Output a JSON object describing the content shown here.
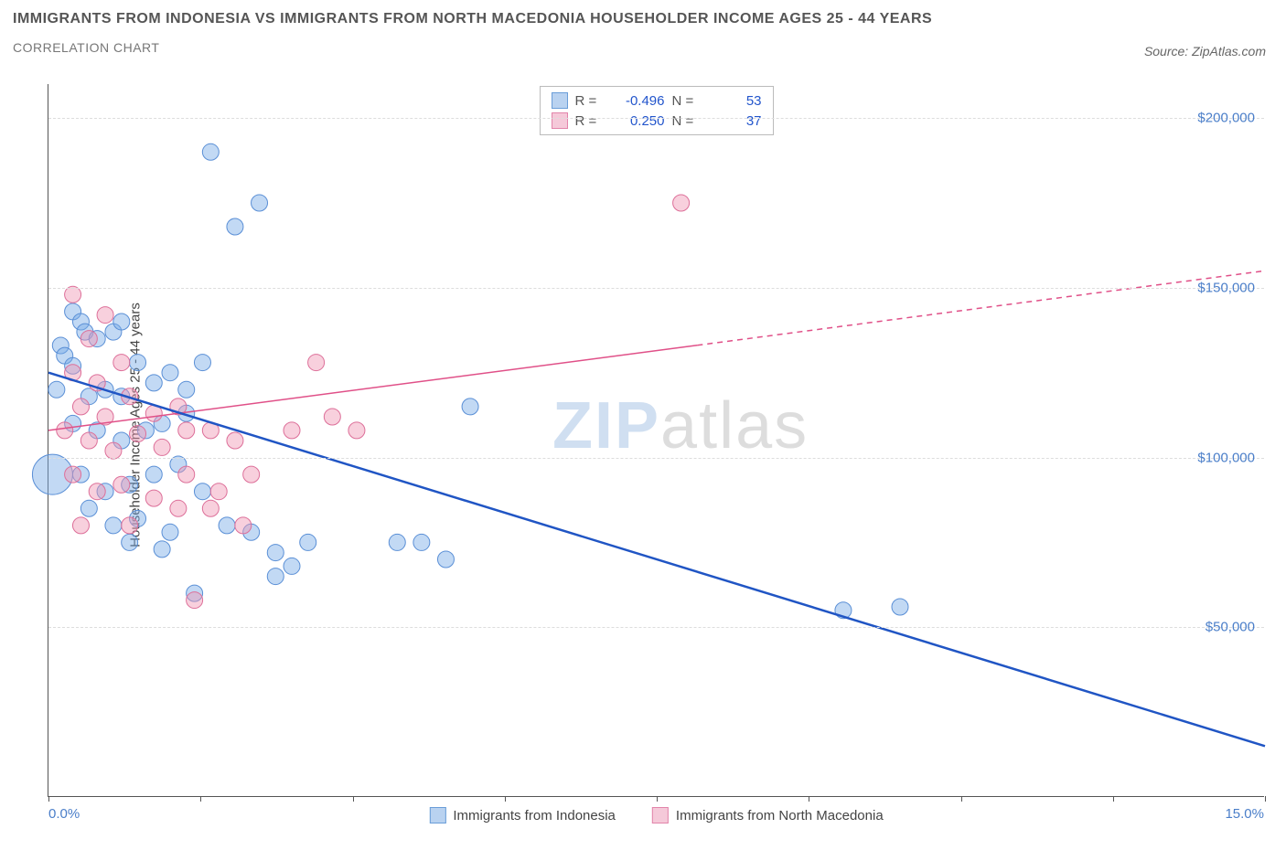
{
  "title": "IMMIGRANTS FROM INDONESIA VS IMMIGRANTS FROM NORTH MACEDONIA HOUSEHOLDER INCOME AGES 25 - 44 YEARS",
  "subtitle": "CORRELATION CHART",
  "source": "Source: ZipAtlas.com",
  "watermark_zip": "ZIP",
  "watermark_atlas": "atlas",
  "chart": {
    "type": "scatter",
    "background_color": "#ffffff",
    "grid_color": "#dddddd",
    "axis_color": "#555555",
    "label_color": "#444444",
    "tick_label_color": "#4a7ec9",
    "ylabel": "Householder Income Ages 25 - 44 years",
    "xlim": [
      0,
      15
    ],
    "ylim": [
      0,
      210000
    ],
    "x_axis_min_label": "0.0%",
    "x_axis_max_label": "15.0%",
    "x_ticks": [
      0,
      1.875,
      3.75,
      5.625,
      7.5,
      9.375,
      11.25,
      13.125,
      15
    ],
    "y_gridlines": [
      50000,
      100000,
      150000,
      200000
    ],
    "y_tick_labels": [
      "$50,000",
      "$100,000",
      "$150,000",
      "$200,000"
    ],
    "series": [
      {
        "name": "Immigrants from Indonesia",
        "color_fill": "rgba(120,170,230,0.45)",
        "color_stroke": "#5a8fd6",
        "swatch_fill": "#b9d2f0",
        "swatch_border": "#6a9dd8",
        "marker_radius": 9,
        "correlation_R": "-0.496",
        "correlation_N": "53",
        "trend": {
          "x1": 0,
          "y1": 125000,
          "x2": 15,
          "y2": 15000,
          "color": "#2055c4",
          "width": 2.5,
          "solid_until_x": 15
        },
        "points": [
          [
            0.05,
            95000,
            22
          ],
          [
            0.15,
            133000,
            9
          ],
          [
            0.2,
            130000,
            9
          ],
          [
            0.1,
            120000,
            9
          ],
          [
            0.3,
            143000,
            9
          ],
          [
            0.4,
            140000,
            9
          ],
          [
            0.45,
            137000,
            9
          ],
          [
            0.6,
            135000,
            9
          ],
          [
            0.8,
            137000,
            9
          ],
          [
            0.9,
            140000,
            9
          ],
          [
            0.3,
            127000,
            9
          ],
          [
            0.5,
            118000,
            9
          ],
          [
            0.7,
            120000,
            9
          ],
          [
            0.9,
            118000,
            9
          ],
          [
            1.1,
            128000,
            9
          ],
          [
            1.3,
            122000,
            9
          ],
          [
            1.5,
            125000,
            9
          ],
          [
            1.7,
            120000,
            9
          ],
          [
            1.9,
            128000,
            9
          ],
          [
            0.3,
            110000,
            9
          ],
          [
            0.6,
            108000,
            9
          ],
          [
            0.9,
            105000,
            9
          ],
          [
            1.2,
            108000,
            9
          ],
          [
            1.4,
            110000,
            9
          ],
          [
            1.7,
            113000,
            9
          ],
          [
            0.4,
            95000,
            9
          ],
          [
            0.7,
            90000,
            9
          ],
          [
            1.0,
            92000,
            9
          ],
          [
            1.3,
            95000,
            9
          ],
          [
            1.6,
            98000,
            9
          ],
          [
            1.9,
            90000,
            9
          ],
          [
            0.5,
            85000,
            9
          ],
          [
            0.8,
            80000,
            9
          ],
          [
            1.1,
            82000,
            9
          ],
          [
            1.5,
            78000,
            9
          ],
          [
            1.0,
            75000,
            9
          ],
          [
            1.4,
            73000,
            9
          ],
          [
            2.2,
            80000,
            9
          ],
          [
            2.5,
            78000,
            9
          ],
          [
            2.8,
            72000,
            9
          ],
          [
            3.0,
            68000,
            9
          ],
          [
            3.2,
            75000,
            9
          ],
          [
            4.3,
            75000,
            9
          ],
          [
            4.6,
            75000,
            9
          ],
          [
            4.9,
            70000,
            9
          ],
          [
            5.2,
            115000,
            9
          ],
          [
            2.0,
            190000,
            9
          ],
          [
            2.6,
            175000,
            9
          ],
          [
            2.3,
            168000,
            9
          ],
          [
            2.8,
            65000,
            9
          ],
          [
            1.8,
            60000,
            9
          ],
          [
            9.8,
            55000,
            9
          ],
          [
            10.5,
            56000,
            9
          ]
        ]
      },
      {
        "name": "Immigrants from North Macedonia",
        "color_fill": "rgba(240,150,180,0.45)",
        "color_stroke": "#dd6f99",
        "swatch_fill": "#f5c9d9",
        "swatch_border": "#e284aa",
        "marker_radius": 9,
        "correlation_R": "0.250",
        "correlation_N": "37",
        "trend": {
          "x1": 0,
          "y1": 108000,
          "x2": 15,
          "y2": 155000,
          "color": "#e05088",
          "width": 1.5,
          "solid_until_x": 8.0
        },
        "points": [
          [
            0.3,
            148000,
            9
          ],
          [
            0.7,
            142000,
            9
          ],
          [
            0.5,
            135000,
            9
          ],
          [
            0.3,
            125000,
            9
          ],
          [
            0.6,
            122000,
            9
          ],
          [
            0.9,
            128000,
            9
          ],
          [
            0.4,
            115000,
            9
          ],
          [
            0.7,
            112000,
            9
          ],
          [
            1.0,
            118000,
            9
          ],
          [
            1.3,
            113000,
            9
          ],
          [
            1.6,
            115000,
            9
          ],
          [
            0.2,
            108000,
            9
          ],
          [
            0.5,
            105000,
            9
          ],
          [
            0.8,
            102000,
            9
          ],
          [
            1.1,
            107000,
            9
          ],
          [
            1.4,
            103000,
            9
          ],
          [
            1.7,
            108000,
            9
          ],
          [
            2.0,
            108000,
            9
          ],
          [
            2.3,
            105000,
            9
          ],
          [
            0.3,
            95000,
            9
          ],
          [
            0.6,
            90000,
            9
          ],
          [
            0.9,
            92000,
            9
          ],
          [
            1.3,
            88000,
            9
          ],
          [
            1.7,
            95000,
            9
          ],
          [
            2.1,
            90000,
            9
          ],
          [
            2.5,
            95000,
            9
          ],
          [
            3.0,
            108000,
            9
          ],
          [
            3.5,
            112000,
            9
          ],
          [
            3.3,
            128000,
            9
          ],
          [
            3.8,
            108000,
            9
          ],
          [
            0.4,
            80000,
            9
          ],
          [
            1.0,
            80000,
            9
          ],
          [
            1.6,
            85000,
            9
          ],
          [
            2.0,
            85000,
            9
          ],
          [
            2.4,
            80000,
            9
          ],
          [
            1.8,
            58000,
            9
          ],
          [
            7.8,
            175000,
            9
          ]
        ]
      }
    ]
  },
  "corr_legend": {
    "R_label": "R =",
    "N_label": "N ="
  }
}
